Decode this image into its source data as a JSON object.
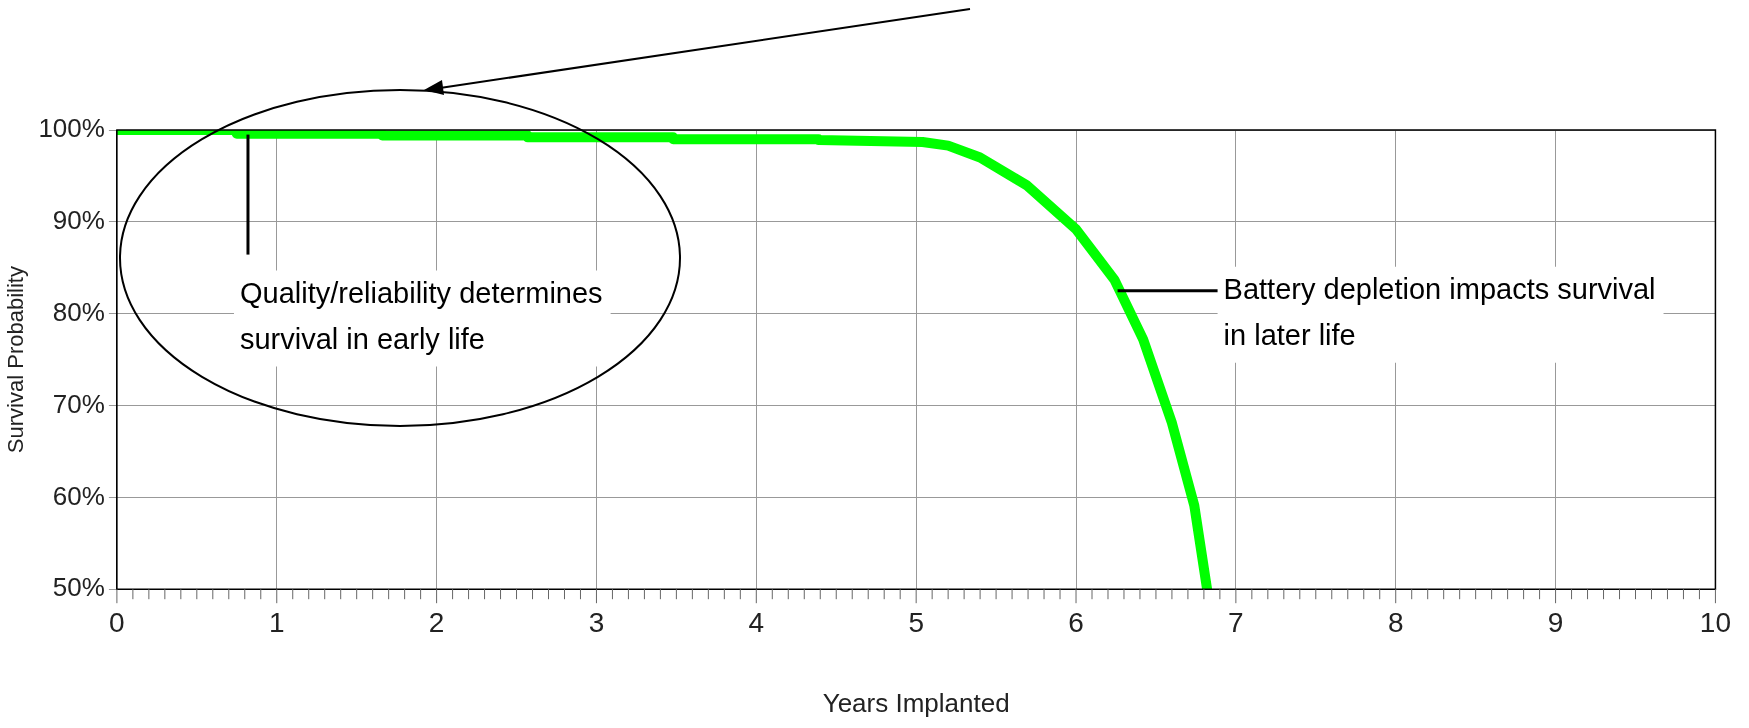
{
  "chart_data": {
    "type": "line",
    "xlabel": "Years Implanted",
    "ylabel": "Survival Probability",
    "series": [
      {
        "color": "#00ff00",
        "x": [
          0,
          0.75,
          0.75,
          1.66,
          1.66,
          2.57,
          2.57,
          3.48,
          3.48,
          4.39,
          4.39,
          5.04,
          5.2,
          5.4,
          5.69,
          6.0,
          6.24,
          6.42,
          6.6,
          6.74,
          6.82
        ],
        "values": [
          100,
          100,
          99.6,
          99.6,
          99.4,
          99.4,
          99.2,
          99.2,
          99.0,
          99.0,
          98.9,
          98.7,
          98.3,
          97.0,
          94.0,
          89.2,
          83.7,
          77.2,
          68.1,
          59.1,
          50
        ]
      }
    ],
    "xlim": [
      0,
      10
    ],
    "ylim": [
      50,
      100
    ],
    "xticks": [
      0,
      {
        "value": 0.1,
        "label": null
      },
      {
        "value": 0.2,
        "label": null
      },
      {
        "value": 0.3,
        "label": null
      },
      {
        "value": 0.4,
        "label": null
      },
      {
        "value": 0.5,
        "label": null
      },
      {
        "value": 0.6,
        "label": null
      },
      {
        "value": 0.7,
        "label": null
      },
      {
        "value": 0.8,
        "label": null
      },
      {
        "value": 0.9,
        "label": null
      },
      1,
      {
        "value": 1.1,
        "label": null
      },
      {
        "value": 1.2,
        "label": null
      },
      {
        "value": 1.3,
        "label": null
      },
      {
        "value": 1.4,
        "label": null
      },
      {
        "value": 1.5,
        "label": null
      },
      {
        "value": 1.6,
        "label": null
      },
      {
        "value": 1.7,
        "label": null
      },
      {
        "value": 1.8,
        "label": null
      },
      {
        "value": 1.9,
        "label": null
      },
      2,
      {
        "value": 2.1,
        "label": null
      },
      {
        "value": 2.2,
        "label": null
      },
      {
        "value": 2.3,
        "label": null
      },
      {
        "value": 2.4,
        "label": null
      },
      {
        "value": 2.5,
        "label": null
      },
      {
        "value": 2.6,
        "label": null
      },
      {
        "value": 2.7,
        "label": null
      },
      {
        "value": 2.8,
        "label": null
      },
      {
        "value": 2.9,
        "label": null
      },
      3,
      {
        "value": 3.1,
        "label": null
      },
      {
        "value": 3.2,
        "label": null
      },
      {
        "value": 3.3,
        "label": null
      },
      {
        "value": 3.4,
        "label": null
      },
      {
        "value": 3.5,
        "label": null
      },
      {
        "value": 3.6,
        "label": null
      },
      {
        "value": 3.7,
        "label": null
      },
      {
        "value": 3.8,
        "label": null
      },
      {
        "value": 3.9,
        "label": null
      },
      4,
      {
        "value": 4.1,
        "label": null
      },
      {
        "value": 4.2,
        "label": null
      },
      {
        "value": 4.3,
        "label": null
      },
      {
        "value": 4.4,
        "label": null
      },
      {
        "value": 4.5,
        "label": null
      },
      {
        "value": 4.6,
        "label": null
      },
      {
        "value": 4.7,
        "label": null
      },
      {
        "value": 4.8,
        "label": null
      },
      {
        "value": 4.9,
        "label": null
      },
      5,
      {
        "value": 5.1,
        "label": null
      },
      {
        "value": 5.2,
        "label": null
      },
      {
        "value": 5.3,
        "label": null
      },
      {
        "value": 5.4,
        "label": null
      },
      {
        "value": 5.5,
        "label": null
      },
      {
        "value": 5.6,
        "label": null
      },
      {
        "value": 5.7,
        "label": null
      },
      {
        "value": 5.8,
        "label": null
      },
      {
        "value": 5.9,
        "label": null
      },
      6,
      {
        "value": 6.1,
        "label": null
      },
      {
        "value": 6.2,
        "label": null
      },
      {
        "value": 6.3,
        "label": null
      },
      {
        "value": 6.4,
        "label": null
      },
      {
        "value": 6.5,
        "label": null
      },
      {
        "value": 6.6,
        "label": null
      },
      {
        "value": 6.7,
        "label": null
      },
      {
        "value": 6.8,
        "label": null
      },
      {
        "value": 6.9,
        "label": null
      },
      7,
      {
        "value": 7.1,
        "label": null
      },
      {
        "value": 7.2,
        "label": null
      },
      {
        "value": 7.3,
        "label": null
      },
      {
        "value": 7.4,
        "label": null
      },
      {
        "value": 7.5,
        "label": null
      },
      {
        "value": 7.6,
        "label": null
      },
      {
        "value": 7.7,
        "label": null
      },
      {
        "value": 7.8,
        "label": null
      },
      {
        "value": 7.9,
        "label": null
      },
      8,
      {
        "value": 8.1,
        "label": null
      },
      {
        "value": 8.2,
        "label": null
      },
      {
        "value": 8.3,
        "label": null
      },
      {
        "value": 8.4,
        "label": null
      },
      {
        "value": 8.5,
        "label": null
      },
      {
        "value": 8.6,
        "label": null
      },
      {
        "value": 8.7,
        "label": null
      },
      {
        "value": 8.8,
        "label": null
      },
      {
        "value": 8.9,
        "label": null
      },
      9,
      {
        "value": 9.1,
        "label": null
      },
      {
        "value": 9.2,
        "label": null
      },
      {
        "value": 9.3,
        "label": null
      },
      {
        "value": 9.4,
        "label": null
      },
      {
        "value": 9.5,
        "label": null
      },
      {
        "value": 9.6,
        "label": null
      },
      {
        "value": 9.7,
        "label": null
      },
      {
        "value": 9.8,
        "label": null
      },
      {
        "value": 9.9,
        "label": null
      },
      10
    ],
    "yticks": [
      {
        "value": 50,
        "label": "50%"
      },
      {
        "value": 60,
        "label": "60%"
      },
      {
        "value": 70,
        "label": "70%"
      },
      {
        "value": 80,
        "label": "80%"
      },
      {
        "value": 90,
        "label": "90%"
      },
      {
        "value": 100,
        "label": "100%"
      }
    ],
    "grid": true,
    "marker": "none",
    "line_style": "solid",
    "annotations": [
      {
        "text": "Quality/reliability determines survival in early life",
        "x": 0.82,
        "y": 99.5
      },
      {
        "text": "Battery depletion impacts survival in later life",
        "x": 6.26,
        "y": 82.5
      }
    ]
  }
}
